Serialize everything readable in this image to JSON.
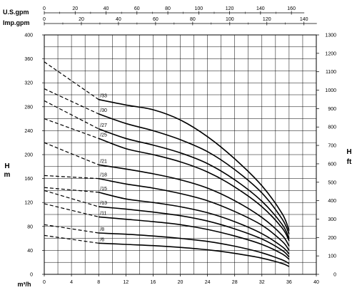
{
  "chart_data": {
    "type": "line",
    "title": "",
    "xlabel": "m³/h",
    "ylabel_left": {
      "main": "H",
      "unit": "m"
    },
    "ylabel_right": {
      "main": "H",
      "unit": "ft"
    },
    "top_axes": [
      {
        "label": "U.S.gpm",
        "ticks": [
          "0",
          "20",
          "40",
          "60",
          "80",
          "100",
          "120",
          "140",
          "160"
        ]
      },
      {
        "label": "Imp.gpm",
        "ticks": [
          "0",
          "20",
          "40",
          "60",
          "80",
          "100",
          "120",
          "140"
        ]
      }
    ],
    "xlim": [
      0,
      40
    ],
    "ylim": [
      0,
      400
    ],
    "ylim_ft": [
      0,
      1300
    ],
    "x_ticks": [
      "0",
      "4",
      "8",
      "12",
      "16",
      "20",
      "24",
      "28",
      "32",
      "36",
      "40"
    ],
    "y_ticks_left": [
      "0",
      "40",
      "80",
      "120",
      "160",
      "200",
      "240",
      "280",
      "320",
      "360",
      "400"
    ],
    "y_ticks_right": [
      "0",
      "100",
      "200",
      "300",
      "400",
      "500",
      "600",
      "700",
      "800",
      "900",
      "1000",
      "1100",
      "1200",
      "1300"
    ],
    "grid": true,
    "line_style_note": "dashed segment below 8 m³/h, solid from 8 to 36 m³/h",
    "series": [
      {
        "name": "/6",
        "x": [
          0,
          8,
          12,
          16,
          20,
          24,
          28,
          32,
          35,
          36
        ],
        "y": [
          65,
          52,
          50,
          48,
          45,
          41,
          35,
          27,
          18,
          13
        ]
      },
      {
        "name": "/8",
        "x": [
          0,
          8,
          12,
          16,
          20,
          24,
          28,
          32,
          35,
          36
        ],
        "y": [
          83,
          69,
          67,
          64,
          60,
          55,
          47,
          36,
          24,
          18
        ]
      },
      {
        "name": "/11",
        "x": [
          0,
          8,
          12,
          16,
          20,
          24,
          28,
          32,
          35,
          36
        ],
        "y": [
          118,
          96,
          92,
          88,
          83,
          75,
          64,
          50,
          34,
          25
        ]
      },
      {
        "name": "/13",
        "x": [
          0,
          8,
          12,
          16,
          20,
          24,
          28,
          32,
          35,
          36
        ],
        "y": [
          140,
          113,
          109,
          104,
          98,
          89,
          76,
          59,
          40,
          29
        ]
      },
      {
        "name": "/15",
        "x": [
          0,
          8,
          12,
          16,
          20,
          24,
          28,
          32,
          35,
          36
        ],
        "y": [
          145,
          137,
          126,
          120,
          113,
          103,
          88,
          68,
          46,
          34
        ]
      },
      {
        "name": "/18",
        "x": [
          0,
          8,
          12,
          16,
          20,
          24,
          28,
          32,
          35,
          36
        ],
        "y": [
          165,
          160,
          151,
          144,
          135,
          123,
          105,
          82,
          55,
          40
        ]
      },
      {
        "name": "/21",
        "x": [
          0,
          8,
          12,
          16,
          20,
          24,
          28,
          32,
          35,
          36
        ],
        "y": [
          220,
          183,
          176,
          168,
          158,
          144,
          123,
          95,
          65,
          47
        ]
      },
      {
        "name": "/25",
        "x": [
          0,
          8,
          12,
          16,
          20,
          24,
          28,
          32,
          35,
          36
        ],
        "y": [
          260,
          227,
          210,
          200,
          188,
          171,
          146,
          113,
          77,
          56
        ]
      },
      {
        "name": "/27",
        "x": [
          0,
          8,
          12,
          16,
          20,
          24,
          28,
          32,
          35,
          36
        ],
        "y": [
          290,
          243,
          227,
          216,
          203,
          185,
          158,
          122,
          83,
          60
        ]
      },
      {
        "name": "/30",
        "x": [
          0,
          8,
          12,
          16,
          20,
          24,
          28,
          32,
          35,
          36
        ],
        "y": [
          310,
          268,
          252,
          240,
          225,
          205,
          175,
          136,
          92,
          67
        ]
      },
      {
        "name": "/33",
        "x": [
          0,
          8,
          12,
          16,
          20,
          24,
          28,
          32,
          35,
          36
        ],
        "y": [
          355,
          292,
          283,
          275,
          258,
          230,
          193,
          148,
          101,
          73
        ]
      }
    ]
  }
}
